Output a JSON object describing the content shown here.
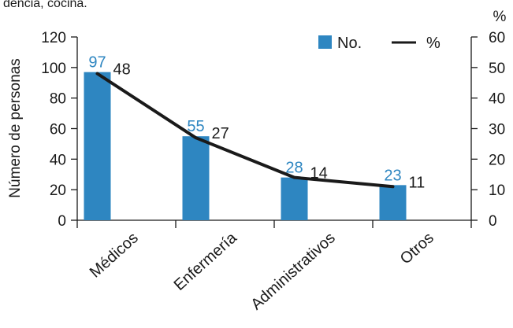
{
  "clipped_text": "dencia, cocina.",
  "chart_data": {
    "type": "bar",
    "categories": [
      "Médicos",
      "Enfermería",
      "Administrativos",
      "Otros"
    ],
    "series": [
      {
        "name": "No.",
        "type": "bar",
        "axis": "left",
        "values": [
          97,
          55,
          28,
          23
        ],
        "labels": [
          "97",
          "55",
          "28",
          "23"
        ],
        "color": "#2e86c1"
      },
      {
        "name": "%",
        "type": "line",
        "axis": "right",
        "values": [
          48,
          27,
          14,
          11
        ],
        "labels": [
          "48",
          "27",
          "14",
          "11"
        ],
        "color": "#1a1a1a"
      }
    ],
    "ylabel": "Número de personas",
    "y2label": "%",
    "ylim": [
      0,
      120
    ],
    "y2lim": [
      0,
      60
    ],
    "yticks": [
      "0",
      "20",
      "40",
      "60",
      "80",
      "100",
      "120"
    ],
    "y2ticks": [
      "0",
      "10",
      "20",
      "30",
      "40",
      "50",
      "60"
    ],
    "legend_position": "top-right",
    "grid": false,
    "colors": {
      "bar": "#2e86c1",
      "bar_label": "#2e86c1",
      "line": "#1a1a1a",
      "axis": "#1a1a1a"
    }
  }
}
